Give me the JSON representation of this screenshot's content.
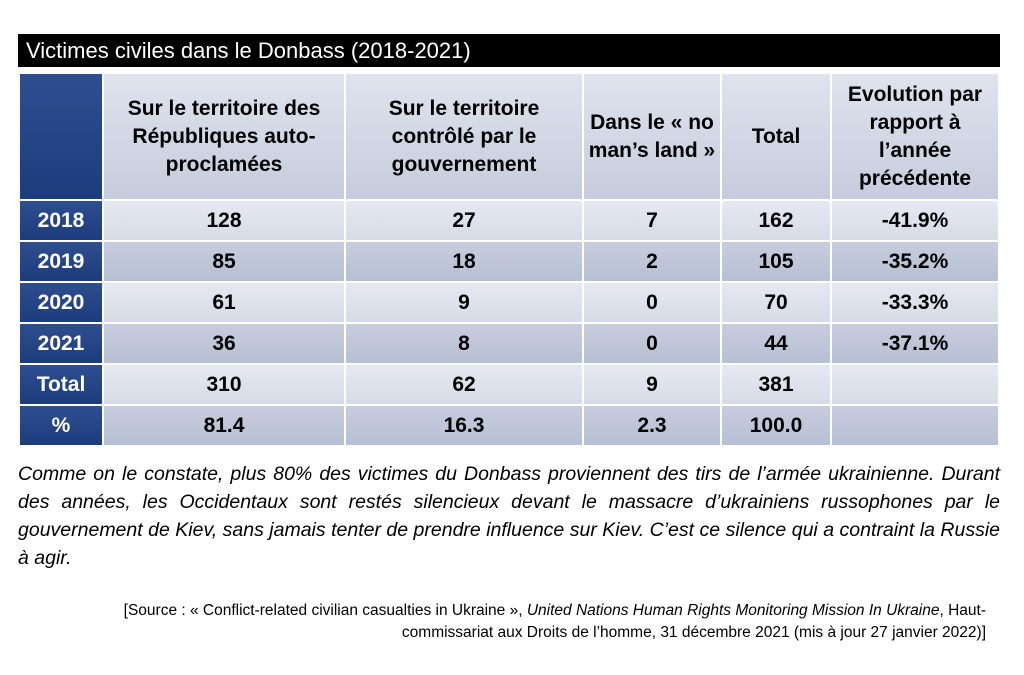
{
  "title": "Victimes civiles dans le Donbass (2018-2021)",
  "table": {
    "headers": [
      "",
      "Sur le territoire des Républiques auto-proclamées",
      "Sur le territoire contrôlé par le gouvernement",
      "Dans le « no man’s land »",
      "Total",
      "Evolution par rapport à l’année précédente"
    ],
    "rows": [
      {
        "label": "2018",
        "cells": [
          "128",
          "27",
          "7",
          "162",
          "-41.9%"
        ]
      },
      {
        "label": "2019",
        "cells": [
          "85",
          "18",
          "2",
          "105",
          "-35.2%"
        ]
      },
      {
        "label": "2020",
        "cells": [
          "61",
          "9",
          "0",
          "70",
          "-33.3%"
        ]
      },
      {
        "label": "2021",
        "cells": [
          "36",
          "8",
          "0",
          "44",
          "-37.1%"
        ]
      },
      {
        "label": "Total",
        "cells": [
          "310",
          "62",
          "9",
          "381",
          ""
        ]
      },
      {
        "label": "%",
        "cells": [
          "81.4",
          "16.3",
          "2.3",
          "100.0",
          ""
        ]
      }
    ]
  },
  "comment": "Comme on le constate, plus 80% des victimes du Donbass proviennent des tirs de l’armée ukrainienne. Durant des années, les Occidentaux sont restés silencieux devant le massacre d’ukrainiens russophones par le gouvernement de Kiev, sans jamais tenter de prendre influence sur Kiev.  C’est ce silence qui a contraint la Russie à agir.",
  "source": {
    "prefix": "[Source : « Conflict-related civilian casualties in Ukraine », ",
    "italic": "United Nations Human Rights Monitoring Mission In Ukraine",
    "suffix": ", Haut-commissariat aux Droits de l’homme, 31 décembre 2021 (mis à jour 27 janvier 2022)]"
  },
  "colors": {
    "title_bar": "#000000",
    "header_dark_blue": "#1d3c7c",
    "row_light": "#dfe3ec",
    "row_dark": "#bfc6d8"
  }
}
